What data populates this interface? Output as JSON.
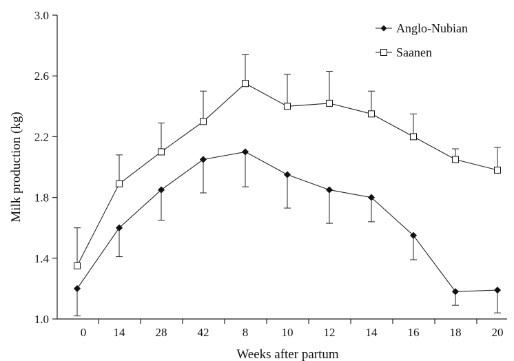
{
  "chart_data": {
    "type": "line",
    "xlabel": "Weeks after partum",
    "ylabel": "Milk production (kg)",
    "ylim": [
      1.0,
      3.0
    ],
    "y_ticks": [
      "1.0",
      "1.4",
      "1.8",
      "2.2",
      "2.6",
      "3.0"
    ],
    "categories": [
      "0",
      "14",
      "28",
      "42",
      "8",
      "10",
      "12",
      "14",
      "16",
      "18",
      "20"
    ],
    "grid": false,
    "legend_position": "top-right",
    "series": [
      {
        "name": "Anglo-Nubian",
        "marker": "filled-diamond",
        "values": [
          1.2,
          1.6,
          1.85,
          2.05,
          2.1,
          1.95,
          1.85,
          1.8,
          1.55,
          1.18,
          1.19
        ],
        "error_minus": [
          0.18,
          0.19,
          0.2,
          0.22,
          0.23,
          0.22,
          0.22,
          0.16,
          0.16,
          0.09,
          0.15
        ]
      },
      {
        "name": "Saanen",
        "marker": "open-square",
        "values": [
          1.35,
          1.89,
          2.1,
          2.3,
          2.55,
          2.4,
          2.42,
          2.35,
          2.2,
          2.05,
          1.98
        ],
        "error_plus": [
          0.25,
          0.19,
          0.19,
          0.2,
          0.19,
          0.21,
          0.21,
          0.15,
          0.15,
          0.07,
          0.15
        ]
      }
    ]
  }
}
